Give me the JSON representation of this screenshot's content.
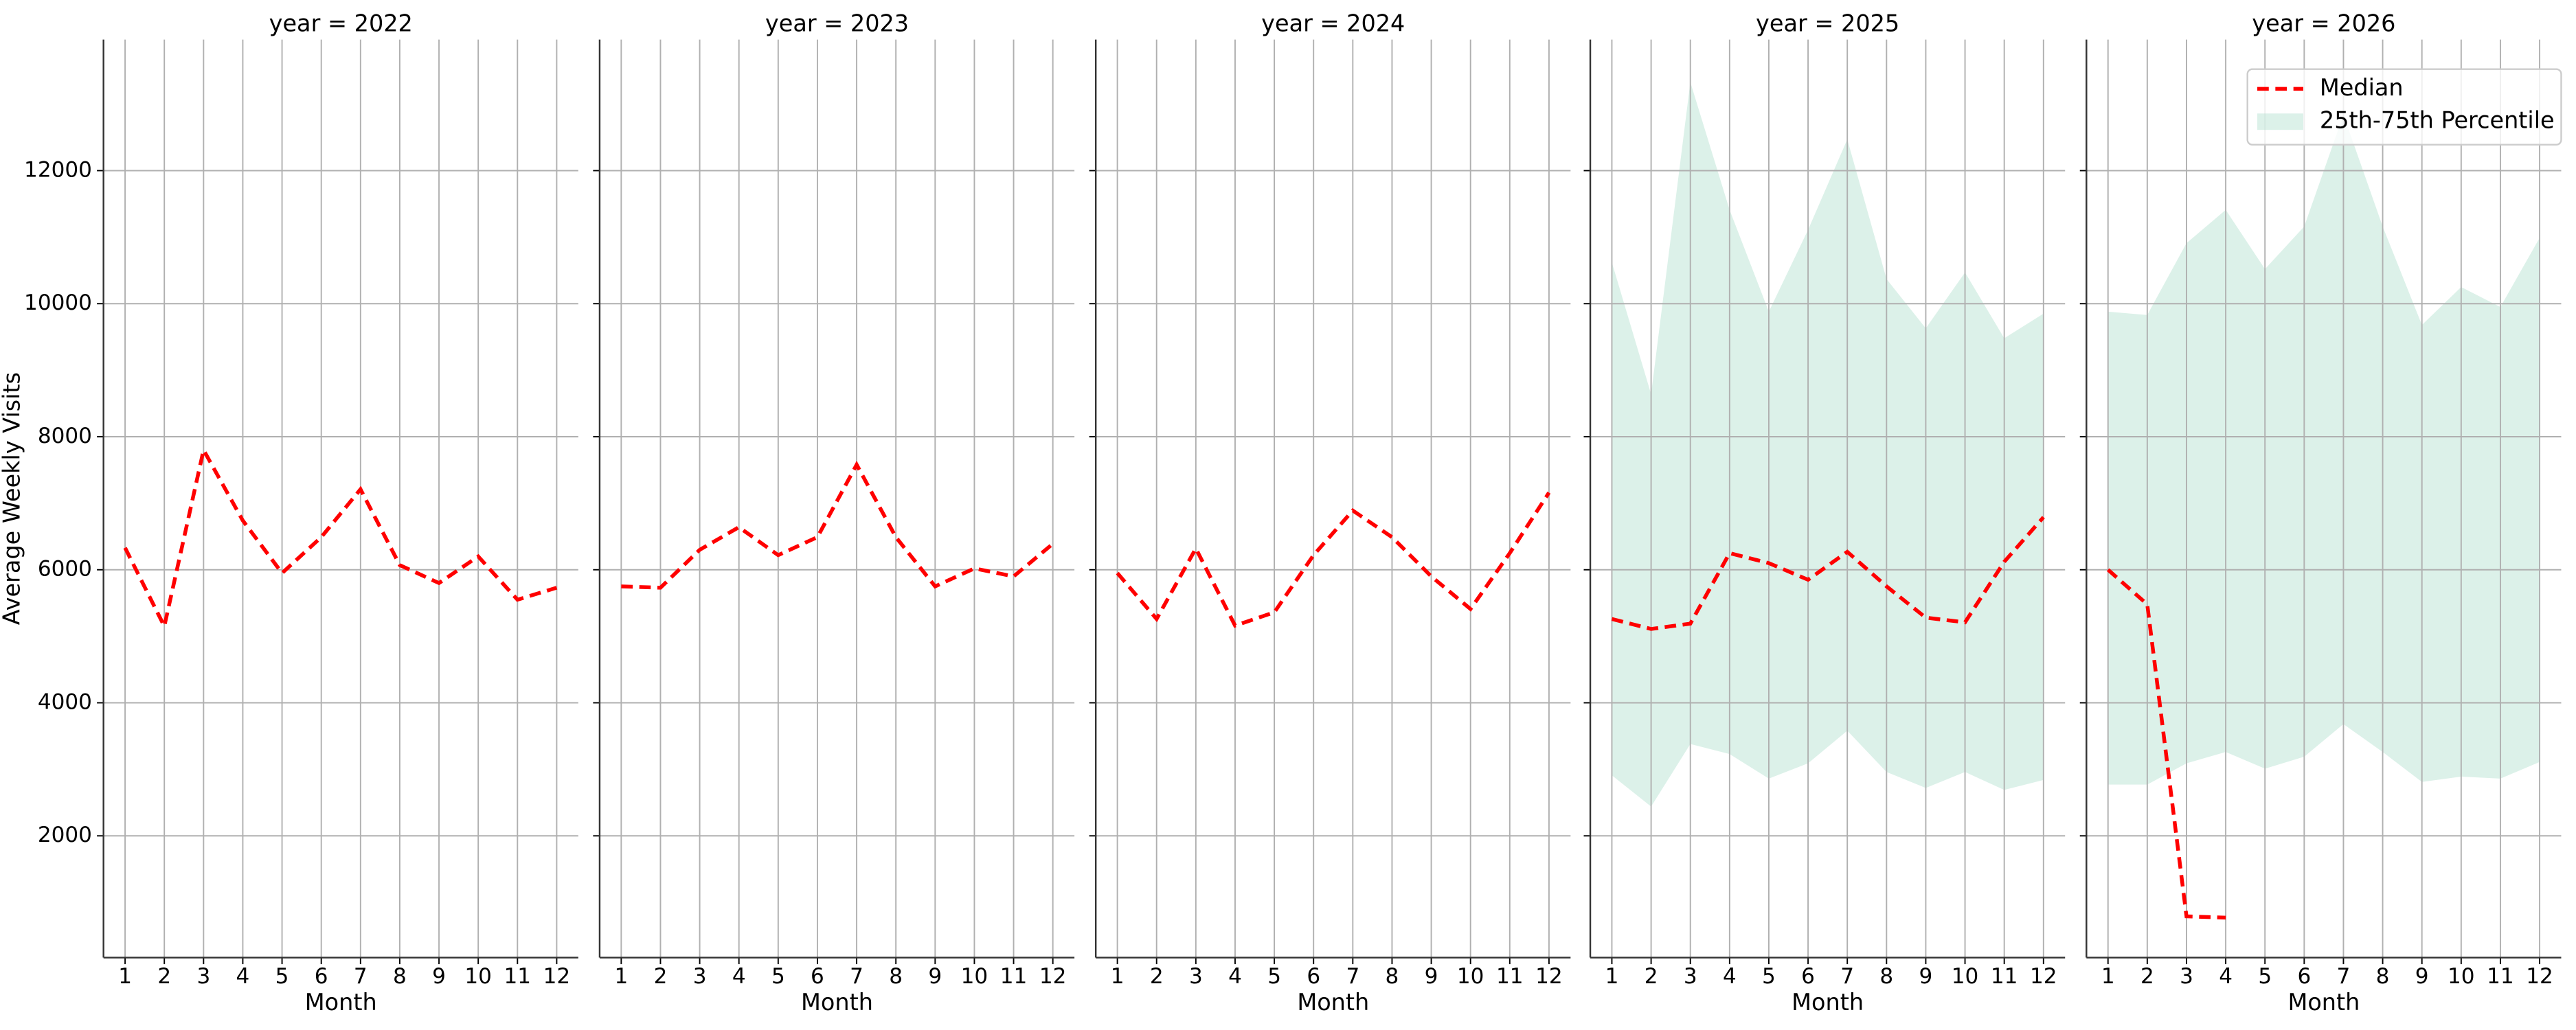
{
  "chart_data": [
    {
      "type": "line",
      "title": "year = 2022",
      "xlabel": "Month",
      "ylabel": "Average Weekly Visits",
      "x": [
        1,
        2,
        3,
        4,
        5,
        6,
        7,
        8,
        9,
        10,
        11,
        12
      ],
      "xlim": [
        0.45,
        12.55
      ],
      "xticks": [
        1,
        2,
        3,
        4,
        5,
        6,
        7,
        8,
        9,
        10,
        11,
        12
      ],
      "ylim": [
        170,
        13970
      ],
      "yticks": [
        2000,
        4000,
        6000,
        8000,
        10000,
        12000
      ],
      "grid": true,
      "series": [
        {
          "name": "Median",
          "color": "#ff0000",
          "values": [
            6330,
            5150,
            7800,
            6740,
            5950,
            6490,
            7210,
            6070,
            5800,
            6200,
            5550,
            5730
          ]
        }
      ]
    },
    {
      "type": "line",
      "title": "year = 2023",
      "xlabel": "Month",
      "x": [
        1,
        2,
        3,
        4,
        5,
        6,
        7,
        8,
        9,
        10,
        11,
        12
      ],
      "xlim": [
        0.45,
        12.55
      ],
      "xticks": [
        1,
        2,
        3,
        4,
        5,
        6,
        7,
        8,
        9,
        10,
        11,
        12
      ],
      "ylim": [
        170,
        13970
      ],
      "yticks": [
        2000,
        4000,
        6000,
        8000,
        10000,
        12000
      ],
      "grid": true,
      "series": [
        {
          "name": "Median",
          "color": "#ff0000",
          "values": [
            5750,
            5730,
            6300,
            6640,
            6220,
            6490,
            7580,
            6490,
            5750,
            6020,
            5900,
            6390
          ]
        }
      ]
    },
    {
      "type": "line",
      "title": "year = 2024",
      "xlabel": "Month",
      "x": [
        1,
        2,
        3,
        4,
        5,
        6,
        7,
        8,
        9,
        10,
        11,
        12
      ],
      "xlim": [
        0.45,
        12.55
      ],
      "xticks": [
        1,
        2,
        3,
        4,
        5,
        6,
        7,
        8,
        9,
        10,
        11,
        12
      ],
      "ylim": [
        170,
        13970
      ],
      "yticks": [
        2000,
        4000,
        6000,
        8000,
        10000,
        12000
      ],
      "grid": true,
      "series": [
        {
          "name": "Median",
          "color": "#ff0000",
          "values": [
            5950,
            5260,
            6320,
            5160,
            5360,
            6220,
            6890,
            6490,
            5900,
            5410,
            6250,
            7160
          ]
        }
      ]
    },
    {
      "type": "line",
      "title": "year = 2025",
      "xlabel": "Month",
      "x": [
        1,
        2,
        3,
        4,
        5,
        6,
        7,
        8,
        9,
        10,
        11,
        12
      ],
      "xlim": [
        0.45,
        12.55
      ],
      "xticks": [
        1,
        2,
        3,
        4,
        5,
        6,
        7,
        8,
        9,
        10,
        11,
        12
      ],
      "ylim": [
        170,
        13970
      ],
      "yticks": [
        2000,
        4000,
        6000,
        8000,
        10000,
        12000
      ],
      "grid": true,
      "series": [
        {
          "name": "25th-75th Percentile",
          "color": "#a8dcc9",
          "lower": [
            2910,
            2440,
            3380,
            3230,
            2860,
            3090,
            3580,
            2960,
            2720,
            2960,
            2690,
            2840
          ],
          "upper": [
            10620,
            8640,
            13330,
            11410,
            9880,
            11110,
            12470,
            10370,
            9630,
            10470,
            9480,
            9850
          ]
        },
        {
          "name": "Median",
          "color": "#ff0000",
          "values": [
            5260,
            5110,
            5190,
            6250,
            6100,
            5850,
            6270,
            5750,
            5280,
            5210,
            6120,
            6790
          ]
        }
      ]
    },
    {
      "type": "line",
      "title": "year = 2026",
      "xlabel": "Month",
      "x": [
        1,
        2,
        3,
        4,
        5,
        6,
        7,
        8,
        9,
        10,
        11,
        12
      ],
      "xlim": [
        0.45,
        12.55
      ],
      "xticks": [
        1,
        2,
        3,
        4,
        5,
        6,
        7,
        8,
        9,
        10,
        11,
        12
      ],
      "ylim": [
        170,
        13970
      ],
      "yticks": [
        2000,
        4000,
        6000,
        8000,
        10000,
        12000
      ],
      "grid": true,
      "legend": "upper right",
      "series": [
        {
          "name": "25th-75th Percentile",
          "color": "#a8dcc9",
          "lower": [
            2770,
            2770,
            3090,
            3260,
            3010,
            3190,
            3680,
            3260,
            2810,
            2890,
            2860,
            3110
          ],
          "upper": [
            9880,
            9830,
            10910,
            11410,
            10520,
            11160,
            12840,
            11160,
            9680,
            10250,
            9950,
            10990
          ]
        },
        {
          "name": "Median",
          "color": "#ff0000",
          "values": [
            6000,
            5480,
            790,
            770,
            null,
            null,
            null,
            null,
            null,
            null,
            null,
            null
          ]
        }
      ]
    }
  ]
}
